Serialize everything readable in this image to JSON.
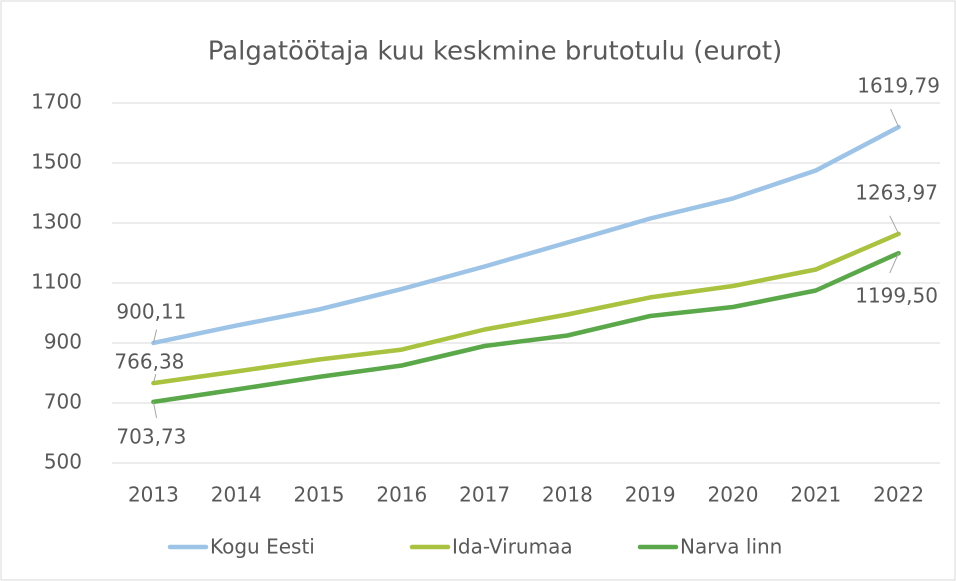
{
  "chart_data": {
    "type": "line",
    "title": "Palgatöötaja kuu keskmine brutotulu (eurot)",
    "categories": [
      "2013",
      "2014",
      "2015",
      "2016",
      "2017",
      "2018",
      "2019",
      "2020",
      "2021",
      "2022"
    ],
    "series": [
      {
        "name": "Kogu Eesti",
        "color": "#9dc3e6",
        "values": [
          900.11,
          958,
          1012,
          1080,
          1155,
          1235,
          1315,
          1382,
          1475,
          1619.79
        ],
        "value_labels": [
          "900,11",
          null,
          null,
          null,
          null,
          null,
          null,
          null,
          null,
          "1619,79"
        ]
      },
      {
        "name": "Ida-Virumaa",
        "color": "#a9c23f",
        "values": [
          766.38,
          805,
          845,
          878,
          945,
          995,
          1052,
          1090,
          1145,
          1263.97
        ],
        "value_labels": [
          "766,38",
          null,
          null,
          null,
          null,
          null,
          null,
          null,
          null,
          "1263,97"
        ]
      },
      {
        "name": "Narva linn",
        "color": "#5ba84a",
        "values": [
          703.73,
          745,
          787,
          825,
          890,
          925,
          990,
          1020,
          1075,
          1199.5
        ],
        "value_labels": [
          "703,73",
          null,
          null,
          null,
          null,
          null,
          null,
          null,
          null,
          "1199,50"
        ]
      }
    ],
    "ylim": [
      500,
      1700
    ],
    "yticks": [
      500,
      700,
      900,
      1100,
      1300,
      1500,
      1700
    ],
    "grid": true,
    "legend": "bottom"
  }
}
